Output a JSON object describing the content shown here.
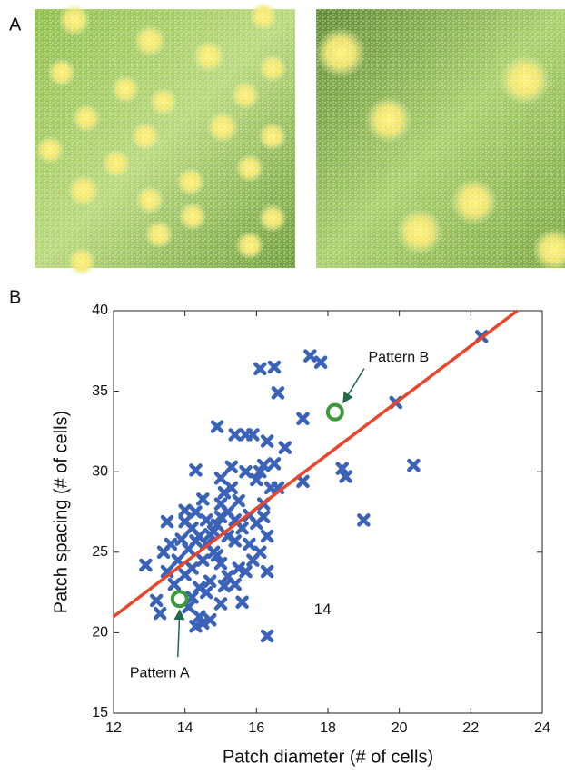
{
  "panel_labels": {
    "a": "A",
    "b": "B"
  },
  "chart_data": {
    "type": "scatter",
    "xlabel": "Patch diameter (# of cells)",
    "ylabel": "Patch spacing (# of cells)",
    "xlim": [
      12,
      24
    ],
    "ylim": [
      15,
      40
    ],
    "xticks": [
      12,
      14,
      16,
      18,
      20,
      22,
      24
    ],
    "yticks": [
      15,
      20,
      25,
      30,
      35,
      40
    ],
    "grid": false,
    "series": [
      {
        "color": "#3a62b8",
        "x": [
          22.3,
          19.9,
          20.4,
          19.0,
          18.4,
          18.5,
          17.5,
          17.8,
          16.1,
          16.5,
          16.6,
          17.3,
          16.8,
          17.3,
          16.3,
          16.5,
          16.2,
          15.4,
          15.7,
          15.9,
          14.9,
          14.3,
          12.9,
          13.2,
          13.3,
          13.5,
          16.3,
          16.3,
          14.7,
          14.5,
          14.3,
          15.0,
          14.0,
          14.2,
          14.4,
          14.6,
          14.8,
          15.0,
          15.2,
          15.4,
          15.1,
          15.3,
          15.5,
          15.0,
          14.8,
          14.5,
          14.2,
          14.0,
          13.8,
          13.6,
          13.9,
          14.1,
          14.3,
          14.6,
          14.9,
          15.2,
          15.4,
          15.6,
          15.8,
          16.0,
          16.2,
          16.4,
          16.3,
          16.1,
          15.9,
          15.7,
          15.5,
          15.2,
          15.0,
          14.7,
          14.4,
          14.2,
          14.6,
          15.1,
          15.6,
          13.7,
          13.5,
          13.4,
          14.0,
          14.5,
          15.7,
          16.0,
          15.0,
          15.3,
          16.1,
          16.6,
          14.1,
          14.4,
          15.8,
          16.2,
          15.4,
          14.9,
          14.3,
          14.7
        ],
        "y": [
          38.4,
          34.3,
          30.4,
          27.0,
          30.2,
          29.7,
          37.2,
          36.8,
          36.4,
          36.5,
          34.9,
          29.4,
          31.5,
          33.3,
          31.9,
          30.5,
          30.4,
          32.3,
          32.3,
          32.3,
          32.8,
          30.1,
          24.2,
          22.0,
          21.2,
          26.9,
          19.8,
          23.8,
          20.8,
          20.6,
          20.4,
          21.8,
          26.9,
          26.5,
          26.0,
          25.5,
          26.3,
          27.2,
          27.5,
          27.0,
          28.7,
          29.0,
          28.2,
          28.0,
          25.0,
          24.5,
          24.0,
          23.6,
          24.5,
          25.5,
          25.8,
          25.2,
          27.5,
          27.0,
          26.7,
          26.0,
          25.7,
          26.5,
          27.3,
          26.8,
          28.0,
          29.0,
          26.0,
          25.0,
          24.5,
          23.8,
          24.0,
          23.5,
          24.3,
          23.2,
          22.8,
          22.2,
          22.5,
          22.9,
          21.9,
          23.0,
          23.8,
          25.0,
          27.6,
          28.3,
          30.0,
          29.5,
          29.6,
          30.3,
          30.0,
          29.0,
          21.6,
          21.0,
          25.5,
          27.2,
          23.0,
          24.8,
          25.7,
          26.1
        ]
      }
    ],
    "fit": {
      "color": "#e8452c",
      "x": [
        12,
        23.3
      ],
      "y": [
        21.0,
        40
      ]
    },
    "highlights": [
      {
        "label": "Pattern A",
        "color": "#3a9a3a",
        "x": 13.85,
        "y": 22.1
      },
      {
        "label": "Pattern B",
        "color": "#3a9a3a",
        "x": 18.2,
        "y": 33.7
      }
    ],
    "annotations": [
      {
        "text": "14",
        "x": 17.85,
        "y": 21.4
      }
    ]
  }
}
